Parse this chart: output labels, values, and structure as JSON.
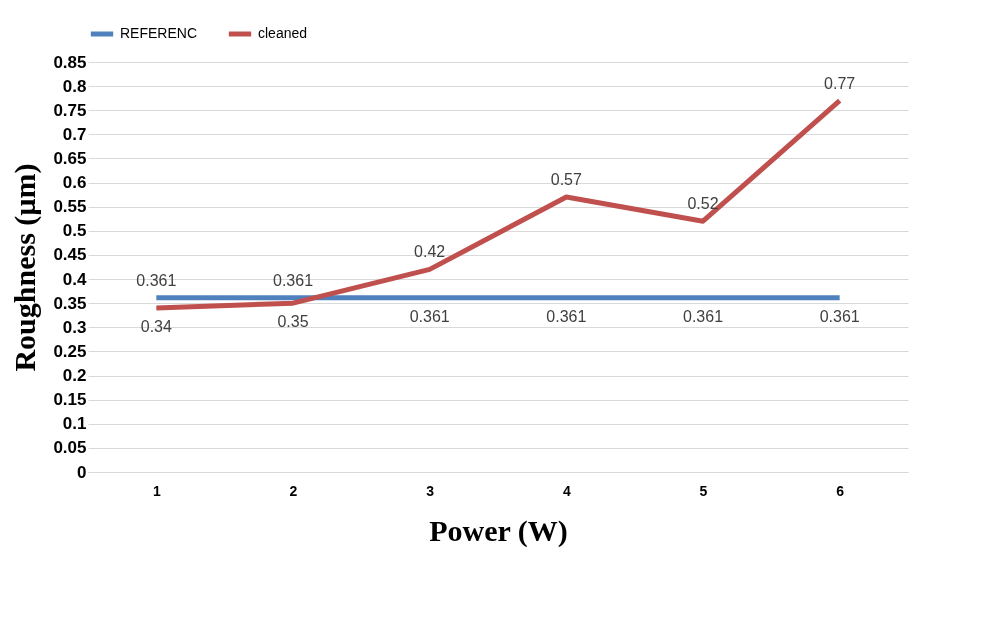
{
  "chart_data": {
    "type": "line",
    "xlabel": "Power (W)",
    "ylabel": "Roughness (µm)",
    "categories": [
      "1",
      "2",
      "3",
      "4",
      "5",
      "6"
    ],
    "series": [
      {
        "name": "REFERENC",
        "color": "#4f81bd",
        "values": [
          0.361,
          0.361,
          0.361,
          0.361,
          0.361,
          0.361
        ]
      },
      {
        "name": "cleaned",
        "color": "#c0504d",
        "values": [
          0.34,
          0.35,
          0.42,
          0.57,
          0.52,
          0.77
        ]
      }
    ],
    "ylim": [
      0,
      0.85
    ],
    "yticks": [
      0,
      0.05,
      0.1,
      0.15,
      0.2,
      0.25,
      0.3,
      0.35,
      0.4,
      0.45,
      0.5,
      0.55,
      0.6,
      0.65,
      0.7,
      0.75,
      0.8,
      0.85
    ],
    "grid": "y",
    "legend": "top",
    "marker": "none",
    "line_style": "solid",
    "data_labels": true
  }
}
